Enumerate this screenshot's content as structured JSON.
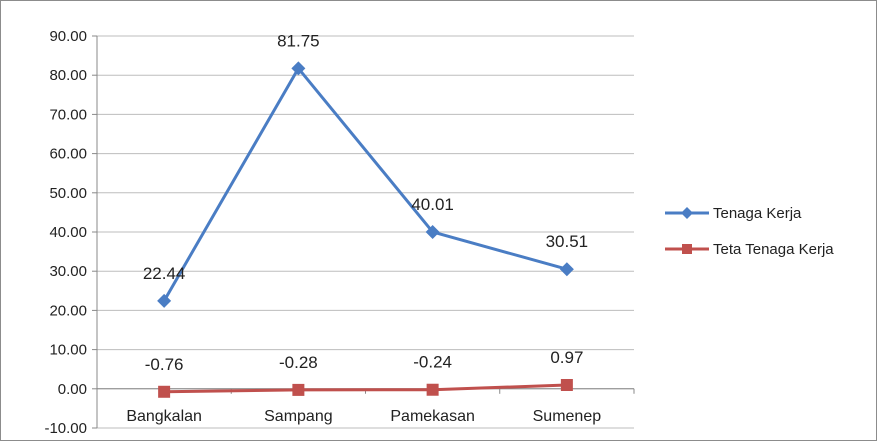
{
  "chart_data": {
    "type": "line",
    "categories": [
      "Bangkalan",
      "Sampang",
      "Pamekasan",
      "Sumenep"
    ],
    "series": [
      {
        "name": "Tenaga Kerja",
        "values": [
          22.44,
          81.75,
          40.01,
          30.51
        ],
        "labels": [
          "22.44",
          "81.75",
          "40.01",
          "30.51"
        ],
        "color": "#4a7dc4",
        "marker": "diamond"
      },
      {
        "name": "Teta Tenaga Kerja",
        "values": [
          -0.76,
          -0.28,
          -0.24,
          0.97
        ],
        "labels": [
          "-0.76",
          "-0.28",
          "-0.24",
          "0.97"
        ],
        "color": "#c0504d",
        "marker": "square"
      }
    ],
    "yticks": [
      "90.00",
      "80.00",
      "70.00",
      "60.00",
      "50.00",
      "40.00",
      "30.00",
      "20.00",
      "10.00",
      "0.00",
      "-10.00"
    ],
    "ylim": [
      -10,
      90
    ],
    "grid": true,
    "legend": "right"
  }
}
